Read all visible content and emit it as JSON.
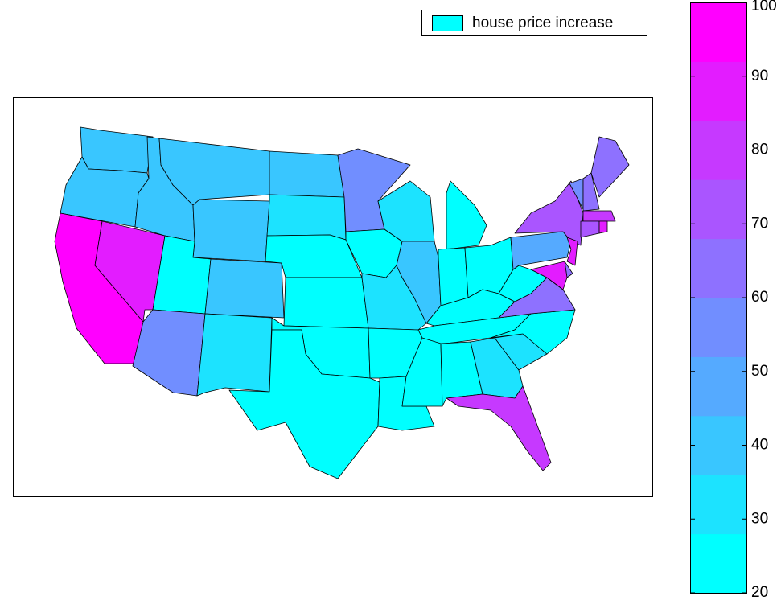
{
  "chart_data": {
    "type": "choropleth",
    "legend": {
      "label": "house price increase",
      "color": "#00ffff"
    },
    "values": [
      42,
      42,
      95,
      85,
      42,
      42,
      42,
      24,
      38,
      58,
      33,
      42,
      33,
      24,
      24,
      24,
      24,
      58,
      24,
      34,
      24,
      24,
      33,
      38,
      26,
      24,
      24,
      24,
      24,
      24,
      24,
      32,
      80,
      32,
      24,
      65,
      24,
      48,
      72,
      55,
      65,
      62,
      78,
      68,
      88,
      88,
      62,
      88
    ],
    "colorbar": {
      "lim": [
        20,
        100
      ],
      "ticks": [
        20,
        30,
        40,
        50,
        60,
        70,
        80,
        90,
        100
      ],
      "colors": [
        "#00ffff",
        "#1ce3ff",
        "#39c6ff",
        "#55aaff",
        "#718eff",
        "#8e71ff",
        "#aa55ff",
        "#c639ff",
        "#e31cff",
        "#ff00ff"
      ]
    }
  }
}
